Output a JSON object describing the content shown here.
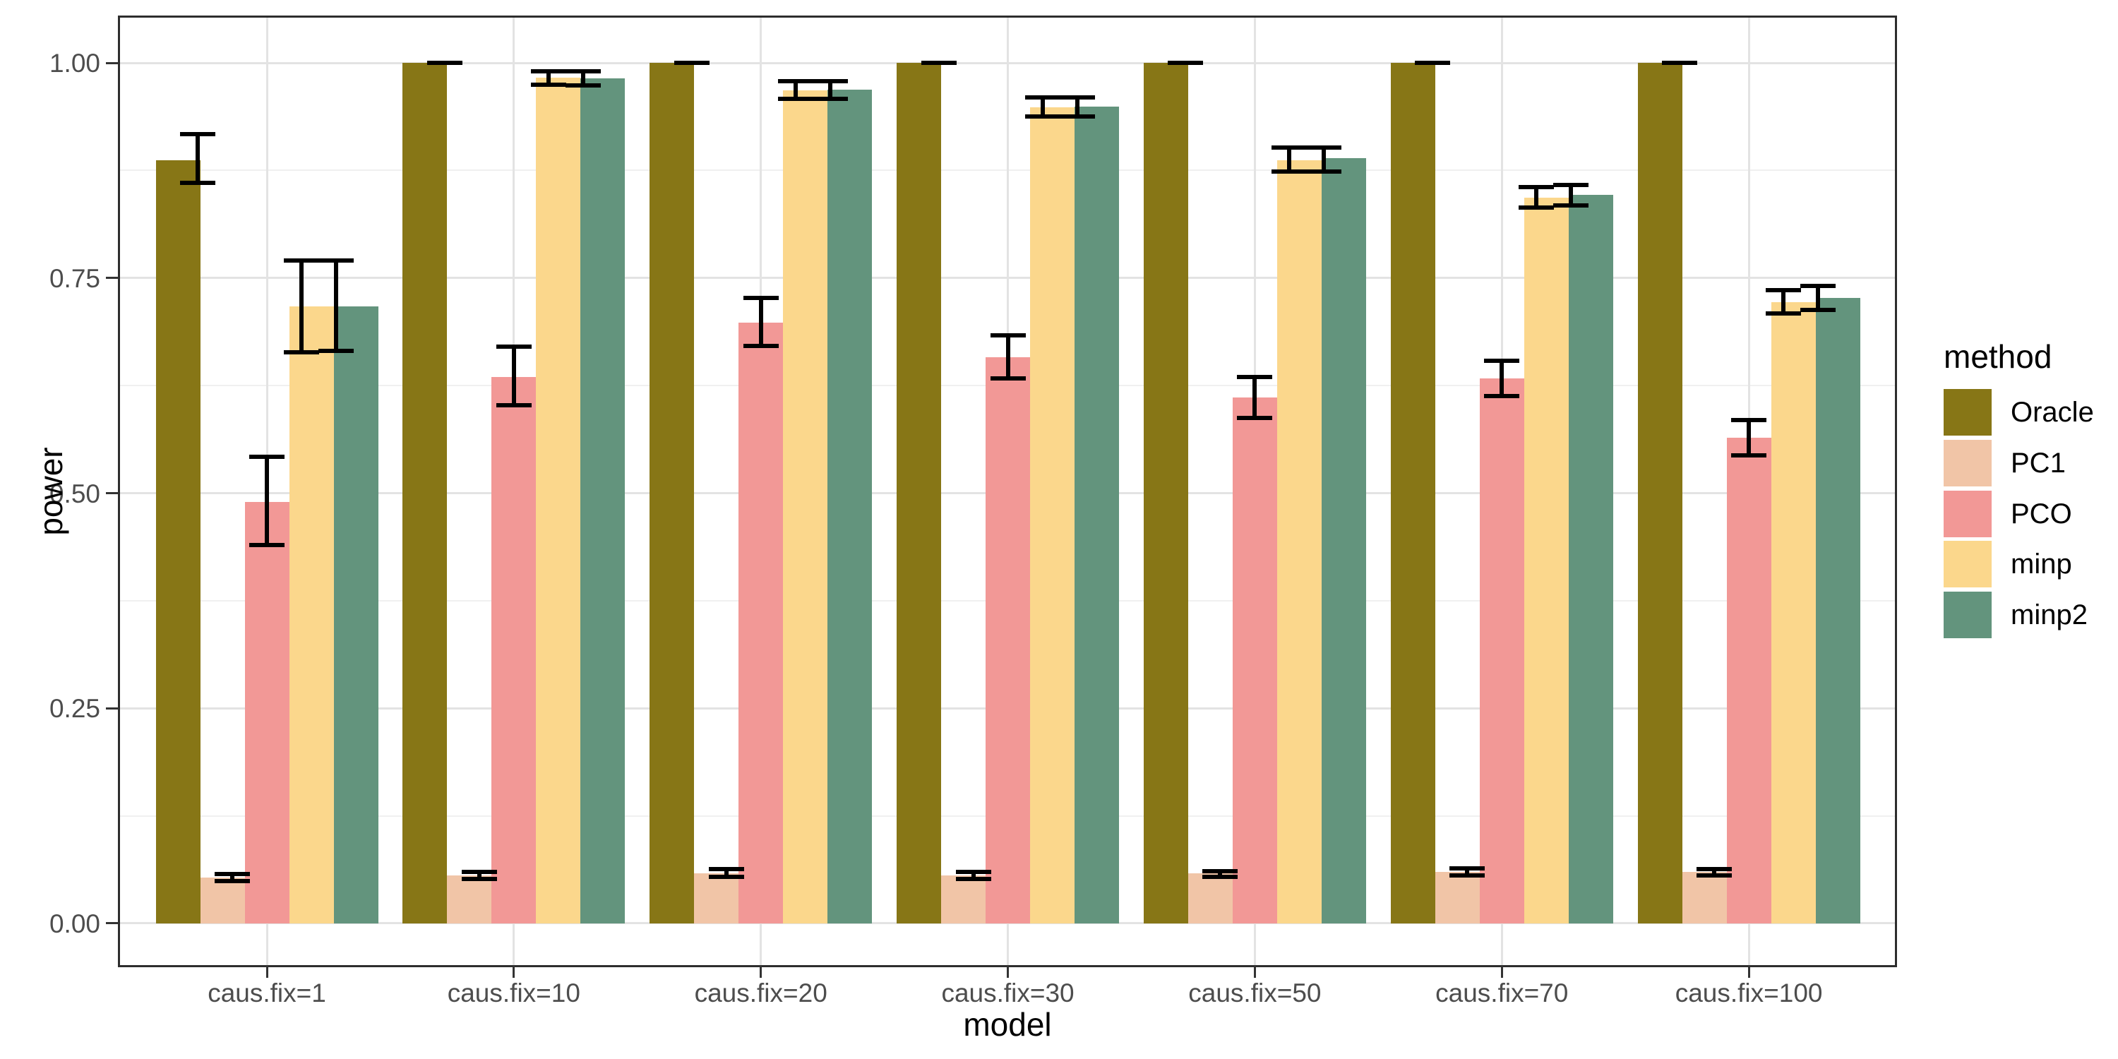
{
  "chart_data": {
    "type": "bar",
    "title": "",
    "xlabel": "model",
    "ylabel": "power",
    "categories": [
      "caus.fix=1",
      "caus.fix=10",
      "caus.fix=20",
      "caus.fix=30",
      "caus.fix=50",
      "caus.fix=70",
      "caus.fix=100"
    ],
    "y_ticks": [
      {
        "label": "0.00",
        "value": 0.0
      },
      {
        "label": "0.25",
        "value": 0.25
      },
      {
        "label": "0.50",
        "value": 0.5
      },
      {
        "label": "0.75",
        "value": 0.75
      },
      {
        "label": "1.00",
        "value": 1.0
      }
    ],
    "y_minor_ticks": [
      0.125,
      0.375,
      0.625,
      0.875
    ],
    "ylim": [
      -0.048,
      1.052
    ],
    "grid": "horizontal major+minor, vertical major at group centers",
    "legend_position": "right",
    "legend_title": "method",
    "bar_edge": "none",
    "error_bar_color": "#000000",
    "series": [
      {
        "name": "Oracle",
        "color": "#877616",
        "values": [
          0.887,
          1.0,
          1.0,
          1.0,
          1.0,
          1.0,
          1.0
        ],
        "err_min": [
          0.861,
          1.0,
          1.0,
          1.0,
          1.0,
          1.0,
          1.0
        ],
        "err_max": [
          0.917,
          1.0,
          1.0,
          1.0,
          1.0,
          1.0,
          1.0
        ]
      },
      {
        "name": "PC1",
        "color": "#f1c5a7",
        "values": [
          0.053,
          0.056,
          0.058,
          0.056,
          0.058,
          0.06,
          0.06
        ],
        "err_min": [
          0.049,
          0.052,
          0.054,
          0.052,
          0.054,
          0.056,
          0.056
        ],
        "err_max": [
          0.057,
          0.06,
          0.063,
          0.06,
          0.061,
          0.064,
          0.063
        ]
      },
      {
        "name": "PCO",
        "color": "#f29896",
        "values": [
          0.49,
          0.635,
          0.698,
          0.658,
          0.611,
          0.633,
          0.564
        ],
        "err_min": [
          0.44,
          0.602,
          0.671,
          0.633,
          0.587,
          0.613,
          0.544
        ],
        "err_max": [
          0.542,
          0.67,
          0.727,
          0.683,
          0.635,
          0.654,
          0.585
        ]
      },
      {
        "name": "minp",
        "color": "#fbd78c",
        "values": [
          0.717,
          0.983,
          0.968,
          0.948,
          0.887,
          0.843,
          0.722
        ],
        "err_min": [
          0.664,
          0.975,
          0.958,
          0.938,
          0.874,
          0.832,
          0.709
        ],
        "err_max": [
          0.77,
          0.99,
          0.979,
          0.96,
          0.902,
          0.856,
          0.736
        ]
      },
      {
        "name": "minp2",
        "color": "#63947d",
        "values": [
          0.717,
          0.982,
          0.969,
          0.949,
          0.889,
          0.847,
          0.727
        ],
        "err_min": [
          0.665,
          0.974,
          0.958,
          0.938,
          0.874,
          0.834,
          0.713
        ],
        "err_max": [
          0.77,
          0.99,
          0.979,
          0.96,
          0.902,
          0.858,
          0.741
        ]
      }
    ]
  }
}
